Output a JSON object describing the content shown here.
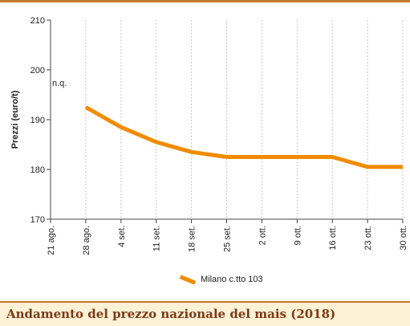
{
  "footer": {
    "title": "Andamento del prezzo nazionale del mais (2018)"
  },
  "chart_data": {
    "type": "line",
    "title": "",
    "xlabel": "",
    "ylabel": "Prezzi (euro/t)",
    "ylim": [
      170,
      210
    ],
    "yticks": [
      170,
      180,
      190,
      200,
      210
    ],
    "categories": [
      "21 ago.",
      "28 ago.",
      "4 set.",
      "11 set.",
      "18 set.",
      "25 set.",
      "2 ott.",
      "9 ott.",
      "16 ott.",
      "23 ott.",
      "30 ott."
    ],
    "series": [
      {
        "name": "Milano  c.tto 103",
        "color": "#f08c00",
        "values": [
          null,
          192.5,
          188.5,
          185.5,
          183.5,
          182.5,
          182.5,
          182.5,
          182.5,
          180.5,
          180.5
        ]
      }
    ],
    "annotations": [
      {
        "text": "n.q.",
        "category": "21 ago."
      }
    ],
    "grid": "vertical",
    "legend_position": "bottom"
  }
}
